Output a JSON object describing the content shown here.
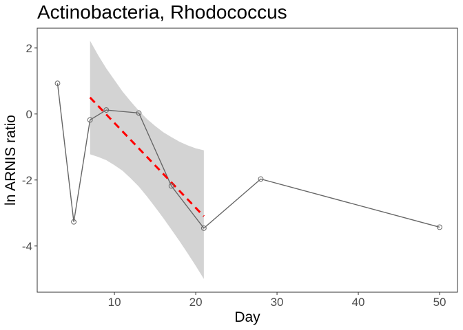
{
  "chart_data": {
    "type": "line",
    "title": "Actinobacteria, Rhodococcus",
    "xlabel": "Day",
    "ylabel": "ln ARNIS ratio",
    "xlim": [
      0.5,
      52.2
    ],
    "ylim": [
      -5.4,
      2.6
    ],
    "xticks": [
      10,
      20,
      30,
      40,
      50
    ],
    "yticks": [
      2,
      0,
      -2,
      -4
    ],
    "ytick_labels": [
      "2",
      "0",
      "-2",
      "-4"
    ],
    "grid": false,
    "legend": "none",
    "series": [
      {
        "x": [
          3,
          5,
          7,
          9,
          13,
          17,
          21,
          28,
          50
        ],
        "y": [
          0.93,
          -3.27,
          -0.18,
          0.12,
          0.03,
          -2.18,
          -3.46,
          -1.97,
          -3.43
        ],
        "color": "#666666",
        "marker": "open-circle"
      }
    ],
    "fit": {
      "x": [
        7,
        21
      ],
      "y": [
        0.5,
        -3.1
      ],
      "color": "#ff0000",
      "style": "dashed"
    },
    "confidence_band": {
      "x": [
        7,
        8,
        9,
        10,
        11,
        12,
        13,
        14,
        15,
        16,
        17,
        18,
        19,
        20,
        21
      ],
      "lower": [
        -1.22,
        -1.3,
        -1.4,
        -1.55,
        -1.72,
        -1.95,
        -2.2,
        -2.5,
        -2.82,
        -3.15,
        -3.5,
        -3.85,
        -4.22,
        -4.6,
        -5.0
      ],
      "upper": [
        2.22,
        1.78,
        1.38,
        1.03,
        0.68,
        0.38,
        0.1,
        -0.15,
        -0.36,
        -0.55,
        -0.7,
        -0.84,
        -0.95,
        -1.04,
        -1.1
      ],
      "color": "#d3d3d3"
    }
  }
}
